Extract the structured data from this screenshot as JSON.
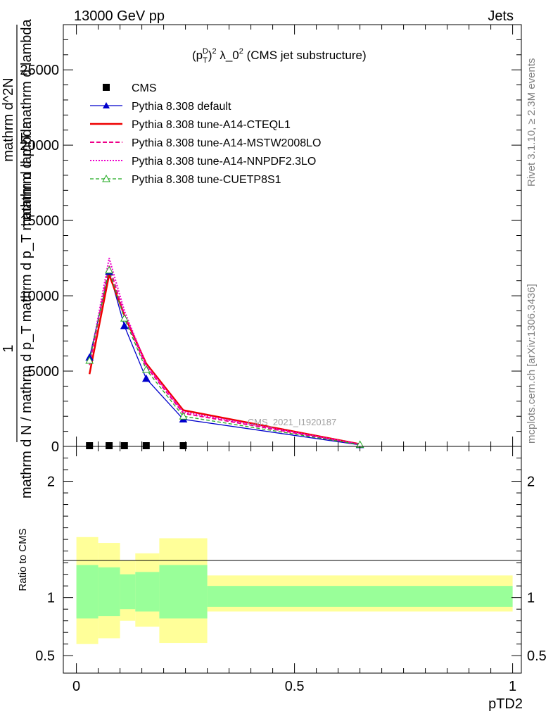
{
  "header": {
    "left": "13000 GeV pp",
    "right": "Jets"
  },
  "side": {
    "rivet": "Rivet 3.1.10, ≥ 2.3M events",
    "mcplots": "mcplots.cern.ch [arXiv:1306.3436]"
  },
  "chart_data": {
    "type": "line",
    "title": "(p_T^D)^2 λ_0^2 (CMS jet substructure)",
    "title_parts": {
      "a": "(p",
      "sup": "D",
      "sub": "T",
      "b": ")",
      "c": " λ_0",
      "d": " (CMS jet substructure)",
      "sq": "2"
    },
    "watermark": "CMS_2021_I1920187",
    "xlabel": "pTD2",
    "ylabel_top": "1",
    "ylabel_mid": "mathrm d N / mathrm d p_T mathrm d p_T mathrm d lambda",
    "ylabel_line1": "mathrm d^2N",
    "ylabel_line2": "mathrm d p_T mathrm d lambda",
    "ratio_ylabel": "Ratio to CMS",
    "xlim": [
      -0.03,
      1.02
    ],
    "ylim": [
      0,
      28000
    ],
    "ratio_ylim": [
      0.35,
      2.3
    ],
    "x_ticks": [
      0,
      0.5,
      1
    ],
    "x_tick_labels": [
      "0",
      "0.5",
      "1"
    ],
    "y_ticks": [
      0,
      5000,
      10000,
      15000,
      20000,
      25000
    ],
    "y_tick_labels": [
      "0",
      "5000",
      "10000",
      "15000",
      "20000",
      "25000"
    ],
    "ratio_ticks": [
      0.5,
      1,
      2
    ],
    "ratio_tick_labels": [
      "0.5",
      "1",
      "2"
    ],
    "bins": [
      0.0,
      0.05,
      0.1,
      0.135,
      0.19,
      0.3,
      1.0
    ],
    "x": [
      0.03,
      0.075,
      0.11,
      0.16,
      0.245,
      0.65
    ],
    "cms": [
      0,
      0,
      0,
      0,
      0
    ],
    "cms_x": [
      0.03,
      0.075,
      0.11,
      0.16,
      0.245
    ],
    "band_inner": [
      [
        0.82,
        1.28
      ],
      [
        0.84,
        1.26
      ],
      [
        0.9,
        1.2
      ],
      [
        0.88,
        1.22
      ],
      [
        0.82,
        1.28
      ],
      [
        0.92,
        1.1
      ]
    ],
    "band_outer": [
      [
        0.6,
        1.52
      ],
      [
        0.65,
        1.47
      ],
      [
        0.8,
        1.32
      ],
      [
        0.75,
        1.38
      ],
      [
        0.61,
        1.51
      ],
      [
        0.88,
        1.19
      ]
    ],
    "legend_position": "top-left",
    "series": [
      {
        "name": "CMS",
        "color": "#000000",
        "style": "marker-square"
      },
      {
        "name": "Pythia 8.308 default",
        "color": "#0000cc",
        "style": "solid-triangle",
        "values": [
          5900,
          11600,
          8000,
          4500,
          1800,
          100
        ]
      },
      {
        "name": "Pythia 8.308 tune-A14-CTEQL1",
        "color": "#ee0000",
        "style": "solid-thick",
        "values": [
          4800,
          11400,
          8700,
          5500,
          2400,
          150
        ]
      },
      {
        "name": "Pythia 8.308 tune-A14-MSTW2008LO",
        "color": "#ee0088",
        "style": "dashed",
        "values": [
          5400,
          12000,
          8700,
          5300,
          2200,
          130
        ]
      },
      {
        "name": "Pythia 8.308 tune-A14-NNPDF2.3LO",
        "color": "#ee00cc",
        "style": "dotted",
        "values": [
          5500,
          12500,
          9000,
          5400,
          2300,
          140
        ]
      },
      {
        "name": "Pythia 8.308 tune-CUETP8S1",
        "color": "#22aa22",
        "style": "dashed-opentriangle",
        "values": [
          5700,
          11700,
          8500,
          5100,
          2000,
          120
        ]
      }
    ]
  }
}
